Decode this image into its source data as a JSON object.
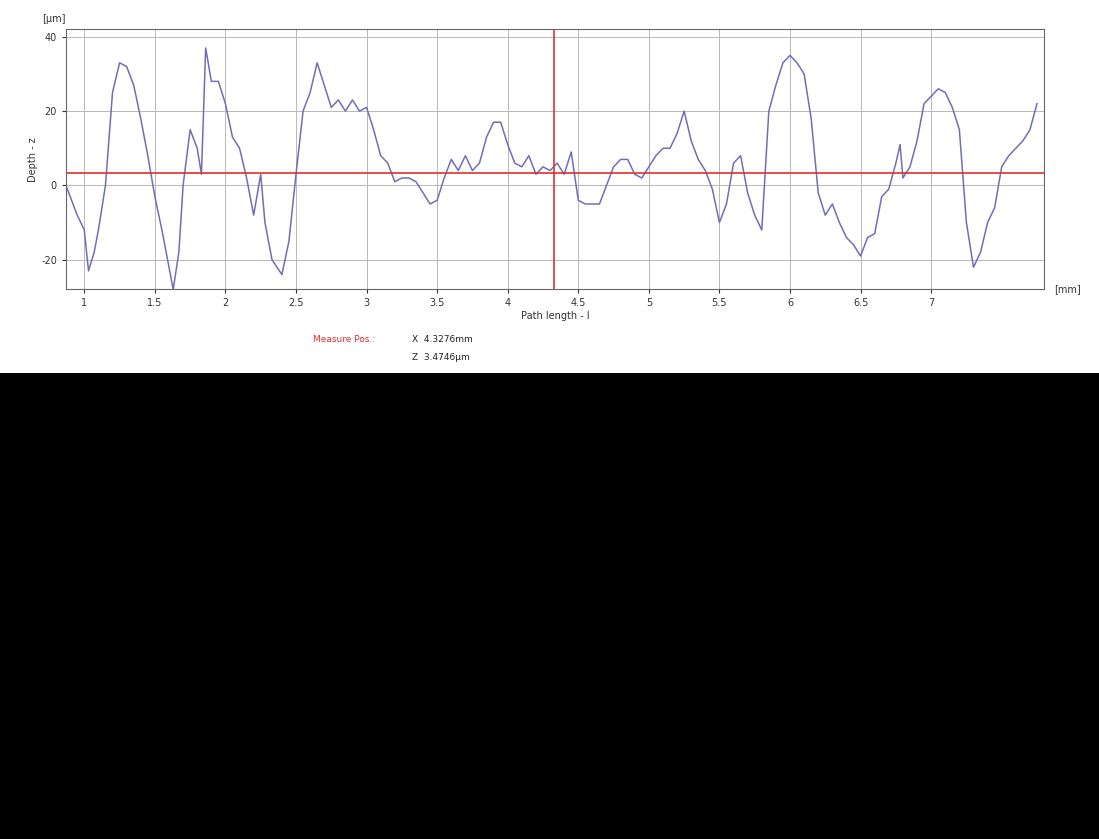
{
  "chart_data": {
    "type": "line",
    "x_label": "Path length - l",
    "y_label": "Depth - z",
    "x_unit": "[mm]",
    "y_unit": "[µm]",
    "x": [
      0.87,
      0.9,
      0.95,
      1.0,
      1.03,
      1.07,
      1.1,
      1.15,
      1.2,
      1.25,
      1.3,
      1.35,
      1.4,
      1.45,
      1.5,
      1.55,
      1.6,
      1.63,
      1.67,
      1.7,
      1.75,
      1.8,
      1.83,
      1.86,
      1.9,
      1.95,
      2.0,
      2.05,
      2.1,
      2.15,
      2.2,
      2.25,
      2.28,
      2.33,
      2.4,
      2.45,
      2.5,
      2.55,
      2.6,
      2.65,
      2.7,
      2.75,
      2.8,
      2.85,
      2.9,
      2.95,
      3.0,
      3.05,
      3.1,
      3.15,
      3.2,
      3.25,
      3.3,
      3.35,
      3.4,
      3.45,
      3.5,
      3.55,
      3.6,
      3.65,
      3.7,
      3.75,
      3.8,
      3.85,
      3.9,
      3.95,
      4.0,
      4.05,
      4.1,
      4.15,
      4.2,
      4.25,
      4.3,
      4.35,
      4.4,
      4.45,
      4.5,
      4.55,
      4.6,
      4.65,
      4.7,
      4.75,
      4.8,
      4.85,
      4.9,
      4.95,
      5.0,
      5.05,
      5.1,
      5.15,
      5.2,
      5.25,
      5.3,
      5.35,
      5.4,
      5.45,
      5.5,
      5.55,
      5.6,
      5.65,
      5.7,
      5.75,
      5.8,
      5.85,
      5.9,
      5.95,
      6.0,
      6.05,
      6.1,
      6.15,
      6.2,
      6.25,
      6.3,
      6.35,
      6.4,
      6.45,
      6.5,
      6.55,
      6.6,
      6.65,
      6.7,
      6.75,
      6.78,
      6.8,
      6.85,
      6.9,
      6.95,
      7.0,
      7.05,
      7.1,
      7.15,
      7.2,
      7.25,
      7.3,
      7.35,
      7.4,
      7.45,
      7.5,
      7.55,
      7.6,
      7.65,
      7.7,
      7.75
    ],
    "values": [
      0,
      -3,
      -8,
      -12,
      -23,
      -18,
      -12,
      0,
      25,
      33,
      32,
      27,
      18,
      8,
      -3,
      -12,
      -22,
      -28,
      -18,
      0,
      15,
      10,
      3,
      37,
      28,
      28,
      22,
      13,
      10,
      2,
      -8,
      3,
      -10,
      -20,
      -24,
      -15,
      3,
      20,
      25,
      33,
      27,
      21,
      23,
      20,
      23,
      20,
      21,
      15,
      8,
      6,
      1,
      2,
      2,
      1,
      -2,
      -5,
      -4,
      2,
      7,
      4,
      8,
      4,
      6,
      13,
      17,
      17,
      11,
      6,
      5,
      8,
      3,
      5,
      4,
      6,
      3,
      9,
      -4,
      -5,
      -5,
      -5,
      0,
      5,
      7,
      7,
      3,
      2,
      5,
      8,
      10,
      10,
      14,
      20,
      12,
      7,
      4,
      -1,
      -10,
      -5,
      6,
      8,
      -2,
      -8,
      -12,
      20,
      27,
      33,
      35,
      33,
      30,
      18,
      -2,
      -8,
      -5,
      -10,
      -14,
      -16,
      -19,
      -14,
      -13,
      -3,
      -1,
      6,
      11,
      2,
      5,
      12,
      22,
      24,
      26,
      25,
      21,
      15,
      -10,
      -22,
      -18,
      -10,
      -6,
      5,
      8,
      10,
      12,
      15,
      22
    ],
    "color": "#6f6fb8",
    "xlim": [
      0.87,
      7.8
    ],
    "ylim": [
      -28,
      42
    ],
    "xticks": [
      1,
      1.5,
      2,
      2.5,
      3,
      3.5,
      4,
      4.5,
      5,
      5.5,
      6,
      6.5,
      7
    ],
    "yticks": [
      -20,
      0,
      20,
      40
    ],
    "grid": true,
    "measure_position": {
      "x": 4.3276,
      "z": 3.4746,
      "title": "Measure Pos.:",
      "x_text": "X  4.3276mm",
      "z_text": "Z  3.4746µm"
    }
  }
}
